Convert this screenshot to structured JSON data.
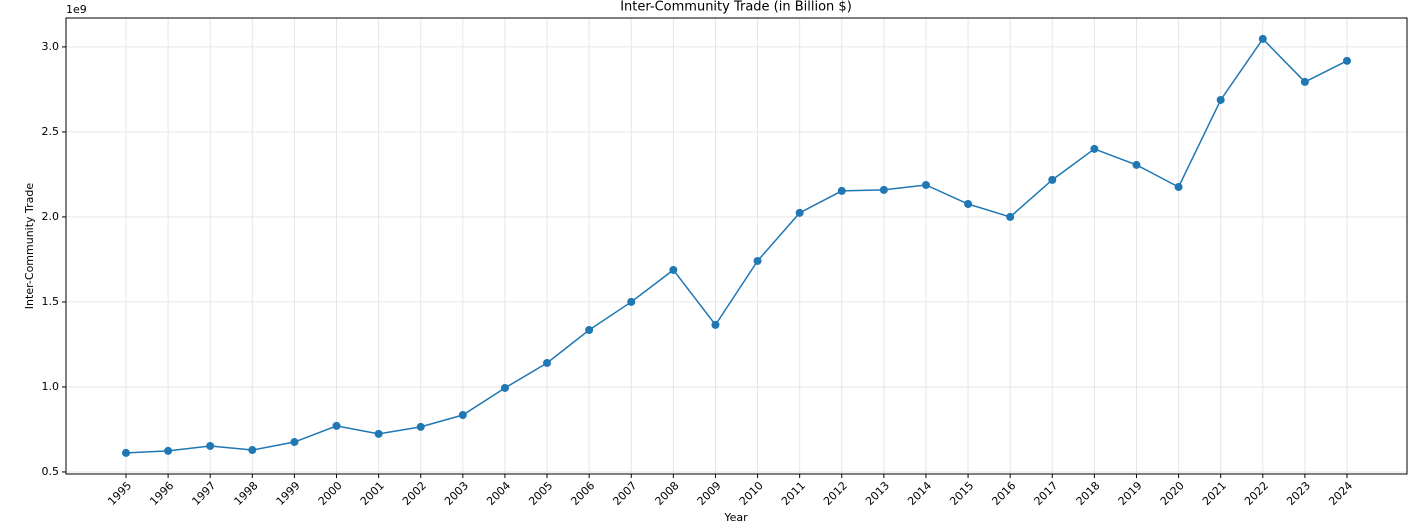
{
  "chart_data": {
    "type": "line",
    "title": "Inter-Community Trade (in Billion $)",
    "x_label": "Year",
    "y_label": "Inter-Community Trade",
    "y_offset_label": "1e9",
    "categories": [
      "1995",
      "1996",
      "1997",
      "1998",
      "1999",
      "2000",
      "2001",
      "2002",
      "2003",
      "2004",
      "2005",
      "2006",
      "2007",
      "2008",
      "2009",
      "2010",
      "2011",
      "2012",
      "2013",
      "2014",
      "2015",
      "2016",
      "2017",
      "2018",
      "2019",
      "2020",
      "2021",
      "2022",
      "2023",
      "2024"
    ],
    "series": [
      {
        "name": "Inter-Community Trade",
        "color": "#1f77b4",
        "values": [
          0.612,
          0.624,
          0.653,
          0.629,
          0.676,
          0.771,
          0.724,
          0.765,
          0.835,
          0.994,
          1.141,
          1.335,
          1.5,
          1.688,
          1.365,
          1.741,
          2.024,
          2.153,
          2.159,
          2.188,
          2.076,
          2.0,
          2.218,
          2.4,
          2.306,
          2.176,
          2.688,
          3.047,
          2.794,
          2.918
        ]
      }
    ],
    "ylim": [
      0.488,
      3.17
    ],
    "yticks": [
      0.5,
      {
        "value": 1,
        "label": "1.0"
      },
      1.5,
      {
        "value": 2,
        "label": "2.0"
      },
      2.5,
      {
        "value": 3,
        "label": "3.0"
      }
    ],
    "grid": true,
    "marker": "circle"
  }
}
